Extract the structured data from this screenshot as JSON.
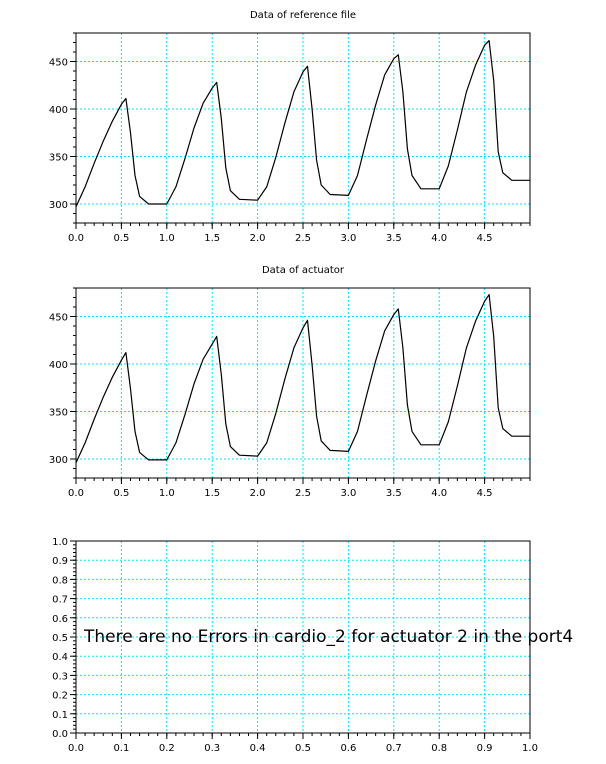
{
  "window": {
    "background": "#ffffff",
    "grid_color": "#00e5ff",
    "line_color": "#000000"
  },
  "chart_data": [
    {
      "type": "line",
      "title": "Data of reference file",
      "xlabel": "",
      "ylabel": "",
      "xlim": [
        0.0,
        5.0
      ],
      "ylim": [
        280,
        480
      ],
      "grid": true,
      "x_ticks": [
        0.0,
        0.5,
        1.0,
        1.5,
        2.0,
        2.5,
        3.0,
        3.5,
        4.0,
        4.5
      ],
      "x_tick_labels": [
        "0.0",
        "0.5",
        "1.0",
        "1.5",
        "2.0",
        "2.5",
        "3.0",
        "3.5",
        "4.0",
        "4.5"
      ],
      "y_ticks": [
        300,
        350,
        400,
        450
      ],
      "y_tick_labels": [
        "300",
        "350",
        "400",
        "450"
      ],
      "series": [
        {
          "color": "#000000",
          "x": [
            0.0,
            0.1,
            0.2,
            0.3,
            0.4,
            0.5,
            0.55,
            0.6,
            0.65,
            0.7,
            0.8,
            1.0,
            1.1,
            1.2,
            1.3,
            1.4,
            1.5,
            1.55,
            1.6,
            1.65,
            1.7,
            1.8,
            2.0,
            2.1,
            2.2,
            2.3,
            2.4,
            2.5,
            2.55,
            2.6,
            2.65,
            2.7,
            2.8,
            3.0,
            3.1,
            3.2,
            3.3,
            3.4,
            3.5,
            3.55,
            3.6,
            3.65,
            3.7,
            3.8,
            4.0,
            4.1,
            4.2,
            4.3,
            4.4,
            4.5,
            4.55,
            4.6,
            4.65,
            4.7,
            4.8,
            5.0
          ],
          "y": [
            297,
            318,
            343,
            366,
            387,
            405,
            411,
            375,
            330,
            308,
            300,
            300,
            318,
            348,
            380,
            406,
            422,
            428,
            390,
            338,
            314,
            305,
            304,
            318,
            349,
            385,
            418,
            439,
            445,
            400,
            346,
            320,
            310,
            309,
            330,
            368,
            404,
            436,
            453,
            457,
            418,
            358,
            330,
            316,
            316,
            340,
            378,
            418,
            446,
            467,
            472,
            430,
            355,
            333,
            325,
            325
          ]
        }
      ]
    },
    {
      "type": "line",
      "title": "Data of actuator",
      "xlabel": "",
      "ylabel": "",
      "xlim": [
        0.0,
        5.0
      ],
      "ylim": [
        280,
        480
      ],
      "grid": true,
      "x_ticks": [
        0.0,
        0.5,
        1.0,
        1.5,
        2.0,
        2.5,
        3.0,
        3.5,
        4.0,
        4.5
      ],
      "x_tick_labels": [
        "0.0",
        "0.5",
        "1.0",
        "1.5",
        "2.0",
        "2.5",
        "3.0",
        "3.5",
        "4.0",
        "4.5"
      ],
      "y_ticks": [
        300,
        350,
        400,
        450
      ],
      "y_tick_labels": [
        "300",
        "350",
        "400",
        "450"
      ],
      "series": [
        {
          "color": "#000000",
          "x": [
            0.0,
            0.1,
            0.2,
            0.3,
            0.4,
            0.5,
            0.55,
            0.6,
            0.65,
            0.7,
            0.8,
            1.0,
            1.1,
            1.2,
            1.3,
            1.4,
            1.5,
            1.55,
            1.6,
            1.65,
            1.7,
            1.8,
            2.0,
            2.1,
            2.2,
            2.3,
            2.4,
            2.5,
            2.55,
            2.6,
            2.65,
            2.7,
            2.8,
            3.0,
            3.1,
            3.2,
            3.3,
            3.4,
            3.5,
            3.55,
            3.6,
            3.65,
            3.7,
            3.8,
            4.0,
            4.1,
            4.2,
            4.3,
            4.4,
            4.5,
            4.55,
            4.6,
            4.65,
            4.7,
            4.8,
            5.0
          ],
          "y": [
            296,
            317,
            342,
            365,
            386,
            404,
            412,
            374,
            329,
            307,
            299,
            299,
            317,
            347,
            379,
            405,
            421,
            429,
            389,
            337,
            313,
            304,
            303,
            317,
            348,
            384,
            417,
            438,
            446,
            399,
            345,
            319,
            309,
            308,
            329,
            367,
            403,
            435,
            452,
            458,
            417,
            357,
            329,
            315,
            315,
            339,
            377,
            417,
            445,
            466,
            473,
            429,
            354,
            332,
            324,
            324
          ]
        }
      ]
    },
    {
      "type": "line",
      "title": "",
      "xlabel": "",
      "ylabel": "",
      "xlim": [
        0.0,
        1.0
      ],
      "ylim": [
        0.0,
        1.0
      ],
      "grid": true,
      "x_ticks": [
        0.0,
        0.1,
        0.2,
        0.3,
        0.4,
        0.5,
        0.6,
        0.7,
        0.8,
        0.9,
        1.0
      ],
      "x_tick_labels": [
        "0.0",
        "0.1",
        "0.2",
        "0.3",
        "0.4",
        "0.5",
        "0.6",
        "0.7",
        "0.8",
        "0.9",
        "1.0"
      ],
      "y_ticks": [
        0.0,
        0.1,
        0.2,
        0.3,
        0.4,
        0.5,
        0.6,
        0.7,
        0.8,
        0.9,
        1.0
      ],
      "y_tick_labels": [
        "0.0",
        "0.1",
        "0.2",
        "0.3",
        "0.4",
        "0.5",
        "0.6",
        "0.7",
        "0.8",
        "0.9",
        "1.0"
      ],
      "series": [],
      "annotation": "There are no Errors in cardio_2 for actuator 2 in the port4"
    }
  ]
}
